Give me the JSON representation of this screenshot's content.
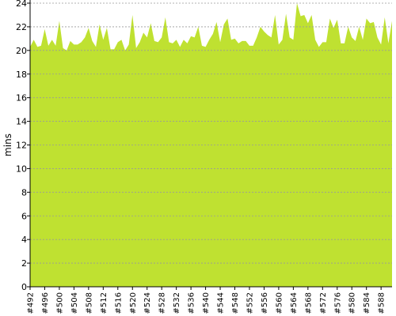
{
  "chart_data": {
    "type": "area",
    "ylabel": "mins",
    "xlabel": "",
    "title": "",
    "ylim": [
      0,
      24
    ],
    "yticks": [
      0,
      2,
      4,
      6,
      8,
      10,
      12,
      14,
      16,
      18,
      20,
      22,
      24
    ],
    "xtick_labels": [
      "#492",
      "#496",
      "#500",
      "#504",
      "#508",
      "#512",
      "#516",
      "#520",
      "#524",
      "#528",
      "#532",
      "#536",
      "#540",
      "#544",
      "#548",
      "#552",
      "#556",
      "#560",
      "#564",
      "#568",
      "#572",
      "#576",
      "#580",
      "#584",
      "#588"
    ],
    "grid": true,
    "grid_style": "dashed-horizontal",
    "fill_color": "#bfe131",
    "grid_color": "#999999",
    "series": [
      {
        "x_start": 492,
        "x_end": 591,
        "values": [
          20.3,
          20.9,
          20.3,
          20.4,
          21.8,
          20.4,
          20.9,
          20.4,
          22.5,
          20.2,
          20.0,
          20.8,
          20.5,
          20.5,
          20.7,
          21.1,
          21.9,
          20.8,
          20.3,
          22.2,
          20.9,
          21.9,
          20.1,
          20.1,
          20.7,
          20.9,
          20.0,
          20.5,
          23.0,
          20.2,
          20.7,
          21.5,
          21.1,
          22.3,
          20.8,
          20.7,
          21.1,
          22.8,
          20.7,
          20.6,
          20.9,
          20.3,
          20.9,
          20.6,
          21.2,
          21.1,
          22.0,
          20.4,
          20.3,
          20.9,
          21.4,
          22.4,
          20.7,
          22.2,
          22.7,
          20.9,
          21.0,
          20.6,
          20.8,
          20.8,
          20.4,
          20.4,
          21.1,
          22.0,
          21.6,
          21.3,
          21.1,
          23.0,
          20.5,
          20.9,
          23.1,
          21.1,
          20.9,
          24.8,
          22.9,
          23.0,
          22.3,
          23.0,
          20.9,
          20.3,
          20.7,
          20.7,
          22.7,
          21.9,
          22.6,
          20.6,
          20.6,
          22.0,
          21.1,
          20.8,
          22.0,
          20.9,
          22.7,
          22.3,
          22.4,
          21.1,
          20.5,
          22.8,
          20.6,
          22.5
        ]
      }
    ]
  }
}
